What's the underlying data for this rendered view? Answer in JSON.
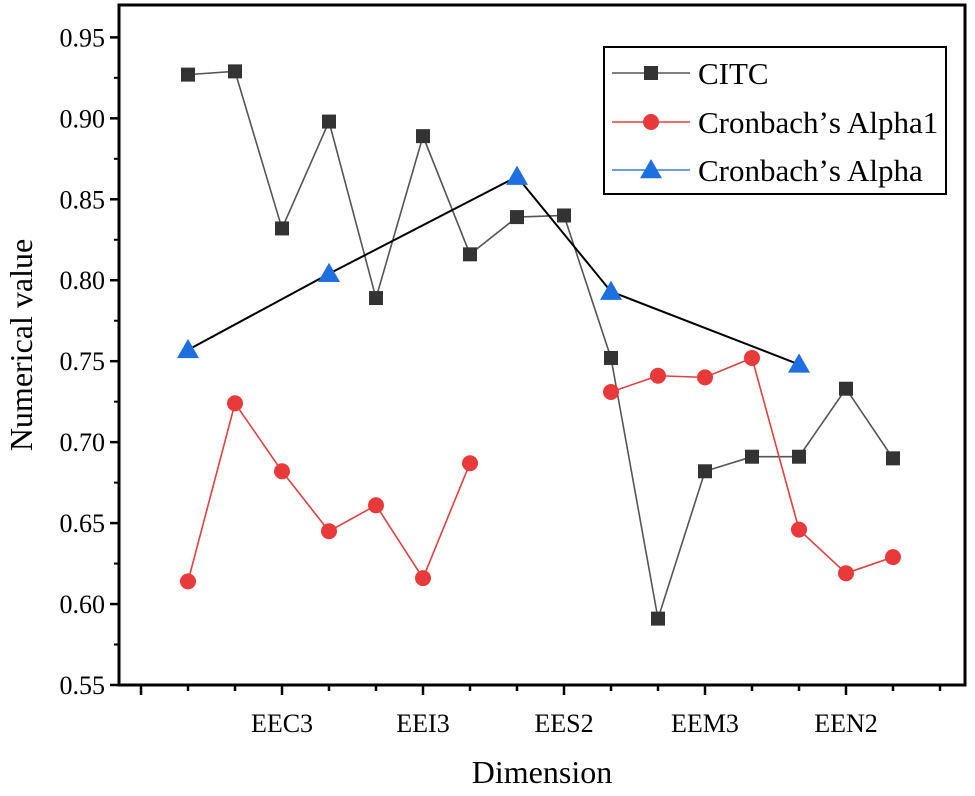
{
  "chart_data": {
    "type": "line",
    "title": "",
    "xlabel": "Dimension",
    "ylabel": "Numerical value",
    "ylim": [
      0.55,
      0.97
    ],
    "y_ticks": [
      0.55,
      0.6,
      0.65,
      0.7,
      0.75,
      0.8,
      0.85,
      0.9,
      0.95
    ],
    "y_tick_labels": [
      "0.55",
      "0.60",
      "0.65",
      "0.70",
      "0.75",
      "0.80",
      "0.85",
      "0.90",
      "0.95"
    ],
    "x_range": [
      0,
      17.5
    ],
    "x_tick_positions": [
      0,
      1,
      2,
      3,
      4,
      5,
      6,
      7,
      8,
      9,
      10,
      11,
      12,
      13,
      14,
      15,
      16,
      17
    ],
    "x_labels": [
      {
        "x": 3,
        "label": "EEC3"
      },
      {
        "x": 6,
        "label": "EEI3"
      },
      {
        "x": 9,
        "label": "EES2"
      },
      {
        "x": 12,
        "label": "EEM3"
      },
      {
        "x": 15,
        "label": "EEN2"
      }
    ],
    "legend_position": "top-right",
    "series": [
      {
        "name": "CITC",
        "color": "#333333",
        "line_color": "#555555",
        "marker": "square",
        "points": [
          {
            "x": 1,
            "y": 0.927
          },
          {
            "x": 2,
            "y": 0.929
          },
          {
            "x": 3,
            "y": 0.832
          },
          {
            "x": 4,
            "y": 0.898
          },
          {
            "x": 5,
            "y": 0.789
          },
          {
            "x": 6,
            "y": 0.889
          },
          {
            "x": 7,
            "y": 0.816
          },
          {
            "x": 8,
            "y": 0.839
          },
          {
            "x": 9,
            "y": 0.84
          },
          {
            "x": 10,
            "y": 0.752
          },
          {
            "x": 11,
            "y": 0.591
          },
          {
            "x": 12,
            "y": 0.682
          },
          {
            "x": 13,
            "y": 0.691
          },
          {
            "x": 14,
            "y": 0.691
          },
          {
            "x": 15,
            "y": 0.733
          },
          {
            "x": 16,
            "y": 0.69
          }
        ]
      },
      {
        "name": "Cronbach's Alpha1",
        "color": "#e83a3a",
        "line_color": "#e04040",
        "marker": "circle",
        "segments": [
          [
            {
              "x": 1,
              "y": 0.614
            },
            {
              "x": 2,
              "y": 0.724
            },
            {
              "x": 3,
              "y": 0.682
            },
            {
              "x": 4,
              "y": 0.645
            },
            {
              "x": 5,
              "y": 0.661
            },
            {
              "x": 6,
              "y": 0.616
            },
            {
              "x": 7,
              "y": 0.687
            }
          ],
          [
            {
              "x": 10,
              "y": 0.731
            },
            {
              "x": 11,
              "y": 0.741
            },
            {
              "x": 12,
              "y": 0.74
            },
            {
              "x": 13,
              "y": 0.752
            },
            {
              "x": 14,
              "y": 0.646
            },
            {
              "x": 15,
              "y": 0.619
            },
            {
              "x": 16,
              "y": 0.629
            }
          ]
        ]
      },
      {
        "name": "Cronbach's Alpha",
        "color": "#1e6fe0",
        "line_color": "#000000",
        "marker": "triangle",
        "points": [
          {
            "x": 1,
            "y": 0.757
          },
          {
            "x": 4,
            "y": 0.804
          },
          {
            "x": 8,
            "y": 0.864
          },
          {
            "x": 10,
            "y": 0.793
          },
          {
            "x": 14,
            "y": 0.748
          }
        ]
      }
    ],
    "legend": [
      "CITC",
      "Cronbachʼs Alpha1",
      "Cronbachʼs Alpha"
    ]
  }
}
